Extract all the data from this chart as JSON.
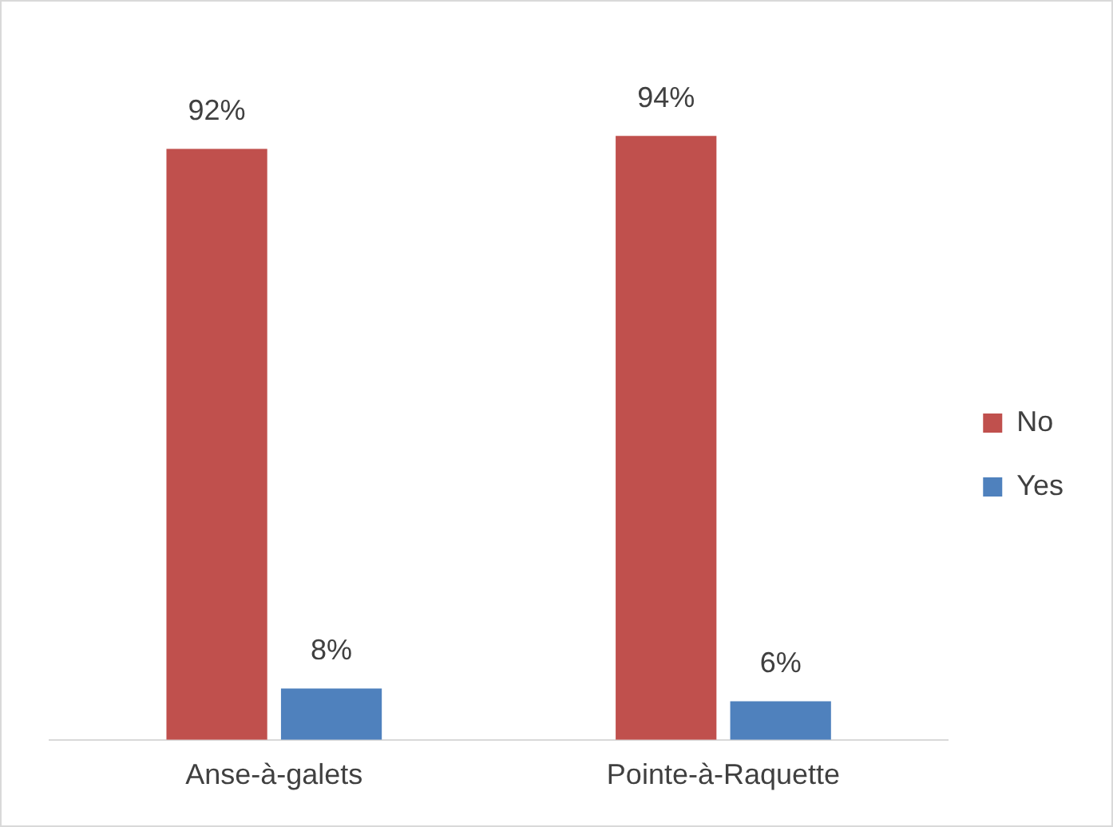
{
  "chart_data": {
    "type": "bar",
    "categories": [
      "Anse-à-galets",
      "Pointe-à-Raquette"
    ],
    "series": [
      {
        "name": "No",
        "color": "#c0504d",
        "values": [
          92,
          94
        ],
        "value_labels": [
          "92%",
          "94%"
        ]
      },
      {
        "name": "Yes",
        "color": "#4f81bd",
        "values": [
          8,
          6
        ],
        "value_labels": [
          "8%",
          "6%"
        ]
      }
    ],
    "legend": "right",
    "grid": false,
    "tick_labels": "x"
  }
}
